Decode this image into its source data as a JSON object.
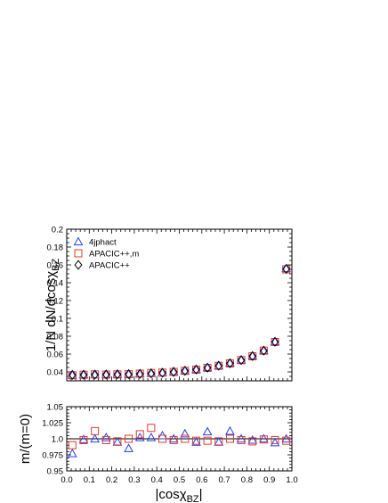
{
  "chart_data": [
    {
      "type": "scatter",
      "ylabel": "1/N dN/dcosχ_BZ",
      "ylabel_main": "1/N dN/dcosχ",
      "ylabel_sub": "BZ",
      "xlim": [
        0.0,
        1.0
      ],
      "ylim": [
        0.03,
        0.2
      ],
      "yticks": [
        0.04,
        0.06,
        0.08,
        0.1,
        0.12,
        0.14,
        0.16,
        0.18,
        0.2
      ],
      "ytick_labels": [
        "0.04",
        "0.06",
        "0.08",
        "0.1",
        "0.12",
        "0.14",
        "0.16",
        "0.18",
        "0.2"
      ],
      "legend_position": "top-left",
      "x": [
        0.025,
        0.075,
        0.125,
        0.175,
        0.225,
        0.275,
        0.325,
        0.375,
        0.425,
        0.475,
        0.525,
        0.575,
        0.625,
        0.675,
        0.725,
        0.775,
        0.825,
        0.875,
        0.925,
        0.975
      ],
      "series": [
        {
          "name": "4jphact",
          "marker": "triangle",
          "color": "#1f3fff",
          "values": [
            0.0365,
            0.037,
            0.037,
            0.0372,
            0.0373,
            0.0376,
            0.038,
            0.0385,
            0.0392,
            0.0402,
            0.0415,
            0.0428,
            0.045,
            0.047,
            0.05,
            0.0535,
            0.058,
            0.064,
            0.074,
            0.156
          ]
        },
        {
          "name": "APACIC++,m",
          "marker": "square",
          "color": "#e8392a",
          "values": [
            0.0362,
            0.0368,
            0.0372,
            0.037,
            0.0372,
            0.0374,
            0.038,
            0.0388,
            0.0392,
            0.04,
            0.0412,
            0.0425,
            0.0445,
            0.0468,
            0.0495,
            0.0532,
            0.0575,
            0.0638,
            0.0735,
            0.155
          ]
        },
        {
          "name": "APACIC++",
          "marker": "diamond",
          "color": "#000000",
          "values": [
            0.0367,
            0.0369,
            0.037,
            0.0371,
            0.0373,
            0.0375,
            0.0378,
            0.0383,
            0.039,
            0.04,
            0.0412,
            0.0427,
            0.0447,
            0.047,
            0.0497,
            0.0533,
            0.0578,
            0.0638,
            0.0738,
            0.1555
          ]
        }
      ]
    },
    {
      "type": "scatter",
      "xlabel": "|cosχ_BZ|",
      "xlabel_main": "|cosχ",
      "xlabel_sub": "BZ",
      "xlabel_end": "|",
      "ylabel": "m/(m=0)",
      "xlim": [
        0.0,
        1.0
      ],
      "ylim": [
        0.95,
        1.05
      ],
      "xticks": [
        0.0,
        0.1,
        0.2,
        0.3,
        0.4,
        0.5,
        0.6,
        0.7,
        0.8,
        0.9,
        1.0
      ],
      "xtick_labels": [
        "0.0",
        "0.1",
        "0.2",
        "0.3",
        "0.4",
        "0.5",
        "0.6",
        "0.7",
        "0.8",
        "0.9",
        "1.0"
      ],
      "yticks": [
        0.95,
        0.975,
        1.0,
        1.025,
        1.05
      ],
      "ytick_labels": [
        "0.95",
        "0.975",
        "1.0",
        "1.025",
        "1.05"
      ],
      "reference_line": 1.0,
      "x": [
        0.025,
        0.075,
        0.125,
        0.175,
        0.225,
        0.275,
        0.325,
        0.375,
        0.425,
        0.475,
        0.525,
        0.575,
        0.625,
        0.675,
        0.725,
        0.775,
        0.825,
        0.875,
        0.925,
        0.975
      ],
      "series": [
        {
          "name": "4jphact",
          "marker": "triangle",
          "color": "#1f3fff",
          "values": [
            0.977,
            0.999,
            1.0,
            1.002,
            0.995,
            0.985,
            1.002,
            1.002,
            1.005,
            1.0,
            1.008,
            0.995,
            1.011,
            0.995,
            1.012,
            1.0,
            0.998,
            1.0,
            0.994,
            1.0
          ]
        },
        {
          "name": "APACIC++,m",
          "marker": "square",
          "color": "#e8392a",
          "values": [
            0.99,
            0.998,
            1.012,
            0.998,
            0.996,
            1.0,
            1.007,
            1.017,
            1.0,
            0.998,
            1.0,
            0.997,
            0.997,
            0.996,
            1.0,
            0.998,
            0.996,
            0.999,
            0.998,
            0.997
          ]
        }
      ]
    }
  ]
}
